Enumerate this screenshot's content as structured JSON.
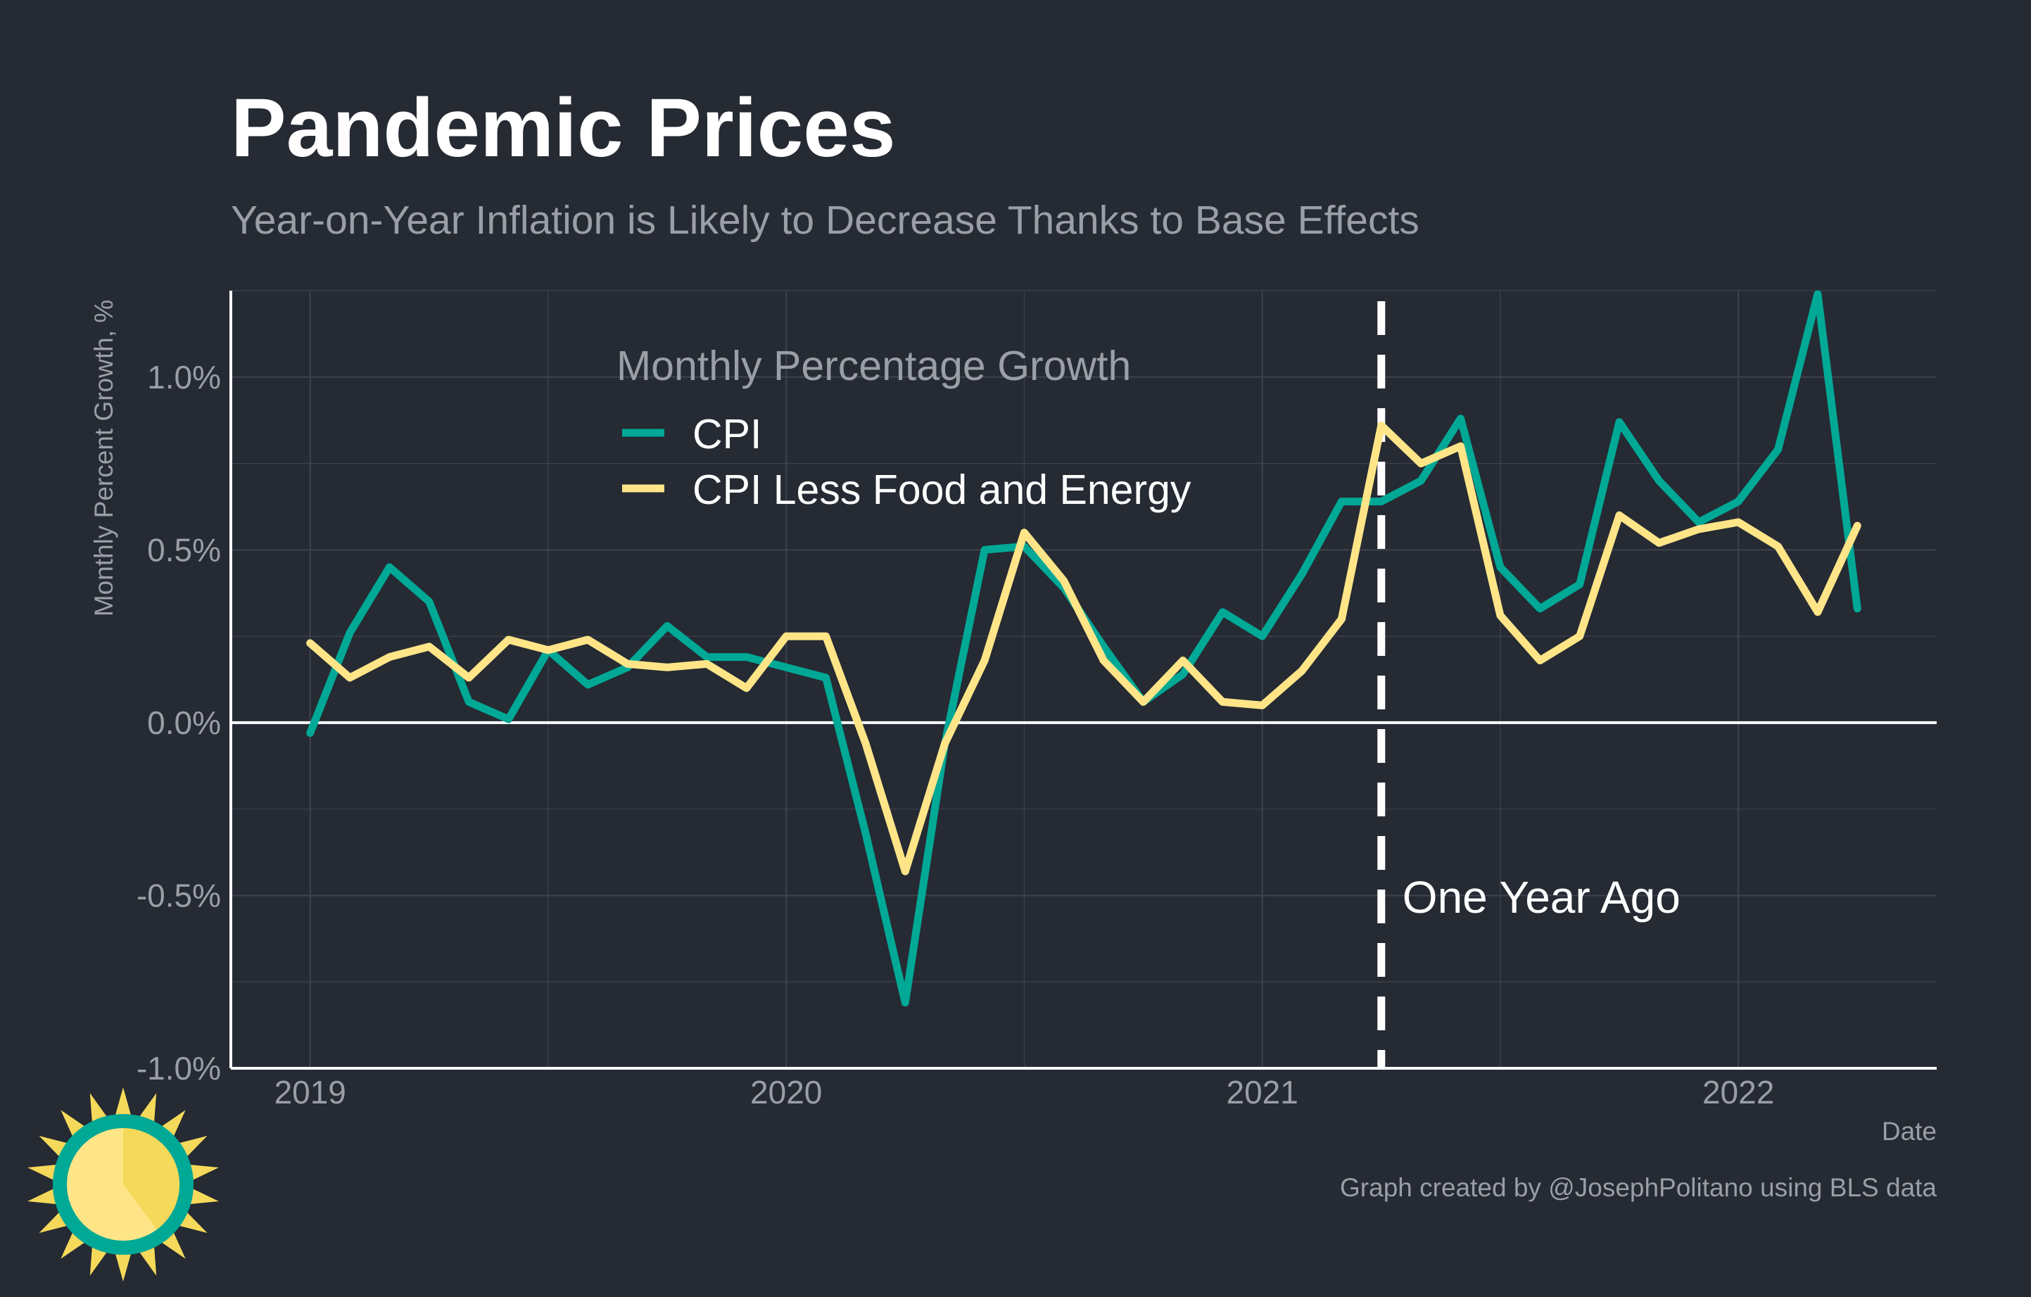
{
  "title": "Pandemic Prices",
  "subtitle": "Year-on-Year Inflation is Likely to Decrease Thanks to Base Effects",
  "credit": "Graph created by @JosephPolitano using BLS data",
  "colors": {
    "background": "#252a33",
    "cpi": "#00a896",
    "core": "#ffe588",
    "zero_line": "#ffffff",
    "grid": "#3e434d",
    "text_muted": "#9a9ea6",
    "logo_ring": "#00a896",
    "logo_sun": "#ffe588",
    "logo_rays": "#f5d95a"
  },
  "logo": {
    "icon": "sun-logo-icon"
  },
  "chart_data": {
    "type": "line",
    "title": "Pandemic Prices",
    "subtitle": "Year-on-Year Inflation is Likely to Decrease Thanks to Base Effects",
    "xlabel": "Date",
    "ylabel": "Monthly Percent Growth, %",
    "x_start": "2019-01",
    "x_ticks": [
      "2019",
      "2020",
      "2021",
      "2022"
    ],
    "y_ticks": [
      "-1.0%",
      "-0.5%",
      "0.0%",
      "0.5%",
      "1.0%"
    ],
    "y_tick_values": [
      -1.0,
      -0.5,
      0.0,
      0.5,
      1.0
    ],
    "ylim": [
      -1.0,
      1.25
    ],
    "xlim": [
      "2018-11",
      "2022-06"
    ],
    "grid": true,
    "legend": {
      "title": "Monthly Percentage Growth",
      "position": "top-center",
      "items": [
        "CPI",
        "CPI Less Food and Energy"
      ]
    },
    "x": [
      "2019-01",
      "2019-02",
      "2019-03",
      "2019-04",
      "2019-05",
      "2019-06",
      "2019-07",
      "2019-08",
      "2019-09",
      "2019-10",
      "2019-11",
      "2019-12",
      "2020-01",
      "2020-02",
      "2020-03",
      "2020-04",
      "2020-05",
      "2020-06",
      "2020-07",
      "2020-08",
      "2020-09",
      "2020-10",
      "2020-11",
      "2020-12",
      "2021-01",
      "2021-02",
      "2021-03",
      "2021-04",
      "2021-05",
      "2021-06",
      "2021-07",
      "2021-08",
      "2021-09",
      "2021-10",
      "2021-11",
      "2021-12",
      "2022-01",
      "2022-02",
      "2022-03",
      "2022-04"
    ],
    "series": [
      {
        "name": "CPI",
        "values": [
          -0.03,
          0.26,
          0.45,
          0.35,
          0.06,
          0.01,
          0.21,
          0.11,
          0.16,
          0.28,
          0.19,
          0.19,
          0.16,
          0.13,
          -0.32,
          -0.81,
          -0.06,
          0.5,
          0.51,
          0.39,
          0.22,
          0.06,
          0.14,
          0.32,
          0.25,
          0.43,
          0.64,
          0.64,
          0.7,
          0.88,
          0.45,
          0.33,
          0.4,
          0.87,
          0.7,
          0.58,
          0.64,
          0.79,
          1.24,
          0.33
        ]
      },
      {
        "name": "CPI Less Food and Energy",
        "values": [
          0.23,
          0.13,
          0.19,
          0.22,
          0.13,
          0.24,
          0.21,
          0.24,
          0.17,
          0.16,
          0.17,
          0.1,
          0.25,
          0.25,
          -0.06,
          -0.43,
          -0.06,
          0.18,
          0.55,
          0.41,
          0.18,
          0.06,
          0.18,
          0.06,
          0.05,
          0.15,
          0.3,
          0.86,
          0.75,
          0.8,
          0.31,
          0.18,
          0.25,
          0.6,
          0.52,
          0.56,
          0.58,
          0.51,
          0.32,
          0.57
        ]
      }
    ],
    "annotations": [
      {
        "x": "2021-04",
        "style": "dashed-vertical",
        "label": "One Year Ago"
      }
    ]
  }
}
